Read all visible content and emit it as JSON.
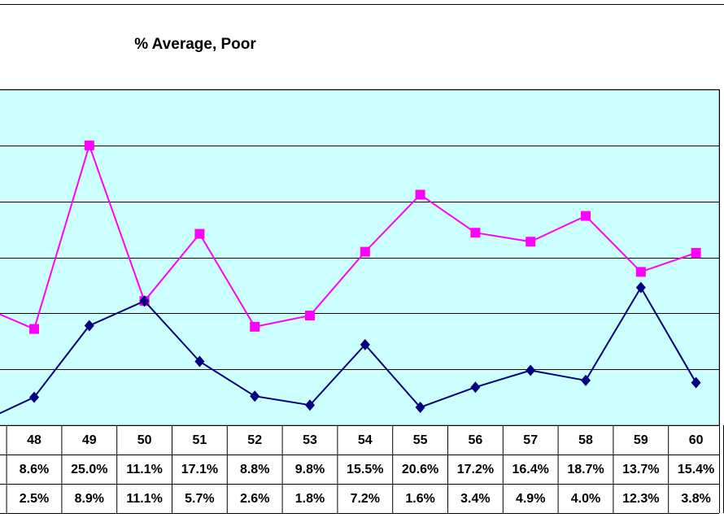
{
  "chart_data": {
    "type": "line",
    "title": "% Average, Poor",
    "categories": [
      null,
      "48",
      "49",
      "50",
      "51",
      "52",
      "53",
      "54",
      "55",
      "56",
      "57",
      "58",
      "59",
      "60"
    ],
    "series": [
      {
        "color": "#ff00ff",
        "marker": "square",
        "values": [
          10.7,
          8.6,
          25.0,
          11.1,
          17.1,
          8.8,
          9.8,
          15.5,
          20.6,
          17.2,
          16.4,
          18.7,
          13.7,
          15.4
        ],
        "value_labels": [
          null,
          "8.6%",
          "25.0%",
          "11.1%",
          "17.1%",
          "8.8%",
          "9.8%",
          "15.5%",
          "20.6%",
          "17.2%",
          "16.4%",
          "18.7%",
          "13.7%",
          "15.4%"
        ]
      },
      {
        "color": "#000080",
        "marker": "diamond",
        "values": [
          0.2,
          2.5,
          8.9,
          11.1,
          5.7,
          2.6,
          1.8,
          7.2,
          1.6,
          3.4,
          4.9,
          4.0,
          12.3,
          3.8
        ],
        "value_labels": [
          null,
          "2.5%",
          "8.9%",
          "11.1%",
          "5.7%",
          "2.6%",
          "1.8%",
          "7.2%",
          "1.6%",
          "3.4%",
          "4.9%",
          "4.0%",
          "12.3%",
          "3.8%"
        ]
      }
    ],
    "ylim": [
      0,
      30
    ],
    "yticks": [
      0,
      5,
      10,
      15,
      20,
      25,
      30
    ],
    "grid": true,
    "plot_background": "#ccffff"
  }
}
